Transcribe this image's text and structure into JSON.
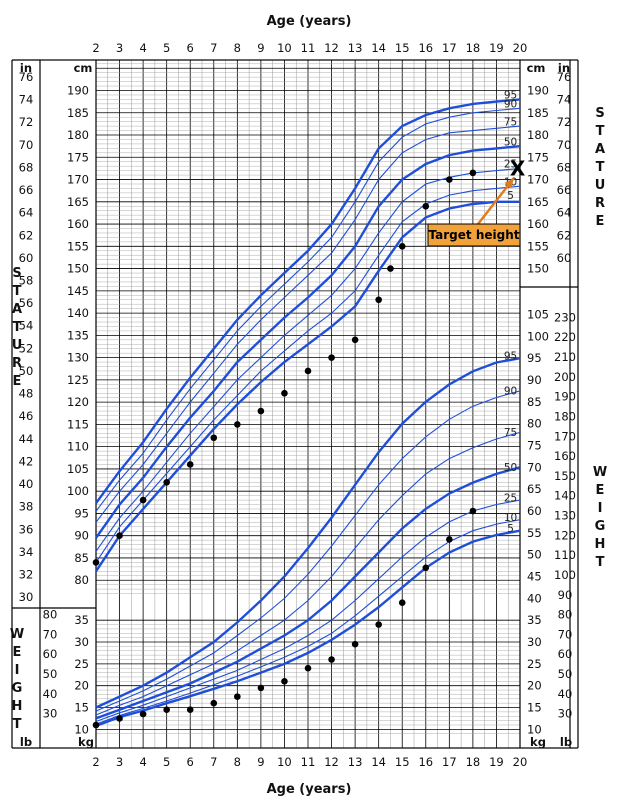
{
  "chart_data": {
    "type": "line",
    "title": "",
    "xlabel": "Age (years)",
    "x_ticks": [
      2,
      3,
      4,
      5,
      6,
      7,
      8,
      9,
      10,
      11,
      12,
      13,
      14,
      15,
      16,
      17,
      18,
      19,
      20
    ],
    "stature_panel": {
      "label_left": "STATURE",
      "label_right": "STATURE",
      "unit_cm": "cm",
      "unit_in": "in",
      "ylim_cm": [
        77,
        197
      ],
      "cm_ticks": [
        80,
        85,
        90,
        95,
        100,
        105,
        110,
        115,
        120,
        125,
        130,
        135,
        140,
        145,
        150,
        155,
        160,
        165,
        170,
        175,
        180,
        185,
        190
      ],
      "in_ticks_left": [
        30,
        32,
        34,
        36,
        38,
        40,
        42,
        44,
        46,
        48,
        50,
        52,
        54,
        56,
        58,
        60,
        62,
        64,
        66,
        68,
        70,
        72,
        74,
        76
      ],
      "cm_ticks_right": [
        150,
        155,
        160,
        165,
        170,
        175,
        180,
        185,
        190
      ],
      "in_ticks_right": [
        60,
        62,
        64,
        66,
        68,
        70,
        72,
        74,
        76
      ],
      "series": [
        {
          "name": "95",
          "bold": true,
          "x": [
            2,
            3,
            4,
            5,
            6,
            7,
            8,
            9,
            10,
            11,
            12,
            13,
            14,
            15,
            16,
            17,
            18,
            19,
            20
          ],
          "values": [
            97.3,
            104.5,
            111,
            118.5,
            125.5,
            132,
            138.5,
            144,
            149,
            154,
            160,
            168,
            177,
            182,
            184.5,
            186,
            187,
            187.5,
            188
          ]
        },
        {
          "name": "90",
          "bold": false,
          "x": [
            2,
            3,
            4,
            5,
            6,
            7,
            8,
            9,
            10,
            11,
            12,
            13,
            14,
            15,
            16,
            17,
            18,
            19,
            20
          ],
          "values": [
            95.5,
            102.5,
            108.5,
            116,
            123,
            129.5,
            136,
            141.5,
            146.5,
            151.5,
            157,
            165,
            174,
            179.5,
            182.5,
            184,
            185,
            185.5,
            186
          ]
        },
        {
          "name": "75",
          "bold": false,
          "x": [
            2,
            3,
            4,
            5,
            6,
            7,
            8,
            9,
            10,
            11,
            12,
            13,
            14,
            15,
            16,
            17,
            18,
            19,
            20
          ],
          "values": [
            93,
            100,
            106,
            113,
            120,
            126.5,
            133,
            138.5,
            143.5,
            148.5,
            153.5,
            161,
            170,
            176,
            179,
            180.5,
            181,
            181.5,
            182
          ]
        },
        {
          "name": "50",
          "bold": true,
          "x": [
            2,
            3,
            4,
            5,
            6,
            7,
            8,
            9,
            10,
            11,
            12,
            13,
            14,
            15,
            16,
            17,
            18,
            19,
            20
          ],
          "values": [
            89.5,
            97,
            103,
            110,
            116.5,
            122.5,
            129,
            134,
            139,
            143.5,
            148.5,
            155,
            164,
            170,
            173.5,
            175.5,
            176.5,
            177,
            177.5
          ]
        },
        {
          "name": "25",
          "bold": false,
          "x": [
            2,
            3,
            4,
            5,
            6,
            7,
            8,
            9,
            10,
            11,
            12,
            13,
            14,
            15,
            16,
            17,
            18,
            19,
            20
          ],
          "values": [
            86.5,
            94,
            100,
            106.5,
            113,
            119,
            125,
            130,
            135,
            139.5,
            144,
            150,
            158,
            165,
            169,
            170.5,
            171.5,
            172,
            172.5
          ]
        },
        {
          "name": "10",
          "bold": false,
          "x": [
            2,
            3,
            4,
            5,
            6,
            7,
            8,
            9,
            10,
            11,
            12,
            13,
            14,
            15,
            16,
            17,
            18,
            19,
            20
          ],
          "values": [
            84,
            92,
            98,
            104,
            110,
            116,
            121.5,
            127,
            131.5,
            136,
            140,
            145,
            153,
            160.5,
            164.5,
            166.5,
            167.5,
            168,
            168.5
          ]
        },
        {
          "name": "5",
          "bold": true,
          "x": [
            2,
            3,
            4,
            5,
            6,
            7,
            8,
            9,
            10,
            11,
            12,
            13,
            14,
            15,
            16,
            17,
            18,
            19,
            20
          ],
          "values": [
            82,
            90,
            96,
            102,
            108,
            114,
            119.5,
            124.5,
            129,
            133,
            137,
            141.5,
            149.5,
            157,
            161.5,
            163.5,
            164.5,
            165,
            165
          ]
        }
      ],
      "patient": {
        "x": [
          2,
          3,
          4,
          5,
          6,
          7,
          8,
          9,
          10,
          11,
          12,
          13,
          14,
          14.5,
          15,
          16,
          17,
          18
        ],
        "values": [
          84,
          90,
          98,
          102,
          106,
          112,
          115,
          118,
          122,
          127,
          130,
          134,
          143,
          150,
          155,
          164,
          170,
          171.5
        ]
      }
    },
    "weight_panel": {
      "label_left": "WEIGHT",
      "label_right": "WEIGHT",
      "unit_kg": "kg",
      "unit_lb": "lb",
      "ylim_kg": [
        9,
        107
      ],
      "kg_ticks_upper": [
        40,
        45,
        50,
        55,
        60,
        65,
        70,
        75,
        80,
        85,
        90,
        95,
        100,
        105
      ],
      "lb_ticks_upper": [
        90,
        100,
        110,
        120,
        130,
        140,
        150,
        160,
        170,
        180,
        190,
        200,
        210,
        220,
        230
      ],
      "kg_ticks_lower": [
        10,
        15,
        20,
        25,
        30,
        35
      ],
      "lb_ticks_lower": [
        30,
        40,
        50,
        60,
        70,
        80
      ],
      "lb_ticks_right_lower": [
        30,
        40,
        50,
        60,
        70,
        80
      ],
      "kg_ticks_right_lower": [
        10,
        15,
        20,
        25,
        30,
        35
      ],
      "series": [
        {
          "name": "95",
          "bold": true,
          "x": [
            2,
            3,
            4,
            5,
            6,
            7,
            8,
            9,
            10,
            11,
            12,
            13,
            14,
            15,
            16,
            17,
            18,
            19,
            20
          ],
          "values": [
            15,
            17.5,
            20,
            23,
            26.5,
            30,
            34.5,
            39.5,
            45,
            51.5,
            58.5,
            66,
            73.5,
            80,
            85,
            89,
            92,
            94,
            95
          ]
        },
        {
          "name": "90",
          "bold": false,
          "x": [
            2,
            3,
            4,
            5,
            6,
            7,
            8,
            9,
            10,
            11,
            12,
            13,
            14,
            15,
            16,
            17,
            18,
            19,
            20
          ],
          "values": [
            14.2,
            16.5,
            18.8,
            21.5,
            24.5,
            27.5,
            31.5,
            35.5,
            40,
            45.5,
            52,
            59,
            66,
            72,
            77,
            81,
            84,
            86,
            87.5
          ]
        },
        {
          "name": "75",
          "bold": false,
          "x": [
            2,
            3,
            4,
            5,
            6,
            7,
            8,
            9,
            10,
            11,
            12,
            13,
            14,
            15,
            16,
            17,
            18,
            19,
            20
          ],
          "values": [
            13.3,
            15.5,
            17.5,
            20,
            22.5,
            25,
            28,
            31.5,
            35,
            39.5,
            45,
            51.5,
            58,
            63.5,
            68.5,
            72,
            74.5,
            76.5,
            78
          ]
        },
        {
          "name": "50",
          "bold": true,
          "x": [
            2,
            3,
            4,
            5,
            6,
            7,
            8,
            9,
            10,
            11,
            12,
            13,
            14,
            15,
            16,
            17,
            18,
            19,
            20
          ],
          "values": [
            12.5,
            14.5,
            16.5,
            18.5,
            20.5,
            23,
            25.5,
            28.5,
            31.5,
            35,
            39.5,
            45,
            50.5,
            56,
            60.5,
            64,
            66.5,
            68.5,
            70
          ]
        },
        {
          "name": "25",
          "bold": false,
          "x": [
            2,
            3,
            4,
            5,
            6,
            7,
            8,
            9,
            10,
            11,
            12,
            13,
            14,
            15,
            16,
            17,
            18,
            19,
            20
          ],
          "values": [
            11.8,
            13.8,
            15.5,
            17.5,
            19.5,
            21.5,
            23.5,
            26,
            28.5,
            31.5,
            35,
            39.5,
            44.5,
            49.5,
            54,
            57.5,
            60,
            61.5,
            62.5
          ]
        },
        {
          "name": "10",
          "bold": false,
          "x": [
            2,
            3,
            4,
            5,
            6,
            7,
            8,
            9,
            10,
            11,
            12,
            13,
            14,
            15,
            16,
            17,
            18,
            19,
            20
          ],
          "values": [
            11.2,
            13.2,
            14.8,
            16.5,
            18.3,
            20.2,
            22.2,
            24.3,
            26.5,
            29,
            32,
            36,
            40.5,
            45,
            49.5,
            53,
            55.5,
            57,
            58
          ]
        },
        {
          "name": "5",
          "bold": true,
          "x": [
            2,
            3,
            4,
            5,
            6,
            7,
            8,
            9,
            10,
            11,
            12,
            13,
            14,
            15,
            16,
            17,
            18,
            19,
            20
          ],
          "values": [
            10.8,
            12.8,
            14.3,
            16,
            17.6,
            19.3,
            21,
            23,
            25,
            27.5,
            30.5,
            34,
            38,
            42.5,
            47,
            50.5,
            53,
            54.5,
            55.5
          ]
        }
      ],
      "patient": {
        "x": [
          2,
          3,
          4,
          5,
          6,
          7,
          8,
          9,
          10,
          11,
          12,
          13,
          14,
          15,
          16,
          17,
          18
        ],
        "values": [
          11,
          12.5,
          13.5,
          14.5,
          14.5,
          16,
          17.5,
          19.5,
          21,
          24,
          26,
          29.5,
          34,
          39,
          47,
          53.5,
          60
        ]
      }
    },
    "annotation": {
      "label": "Target height",
      "marker": "X",
      "x": 19.9,
      "stature_cm": 172.5
    },
    "colors": {
      "curve": "#1f4fd8",
      "grid_major": "#000000",
      "grid_minor": "#9a9a9a",
      "dot": "#000000",
      "annotation_box": "#f2a23a",
      "arrow": "#e07b20"
    }
  }
}
